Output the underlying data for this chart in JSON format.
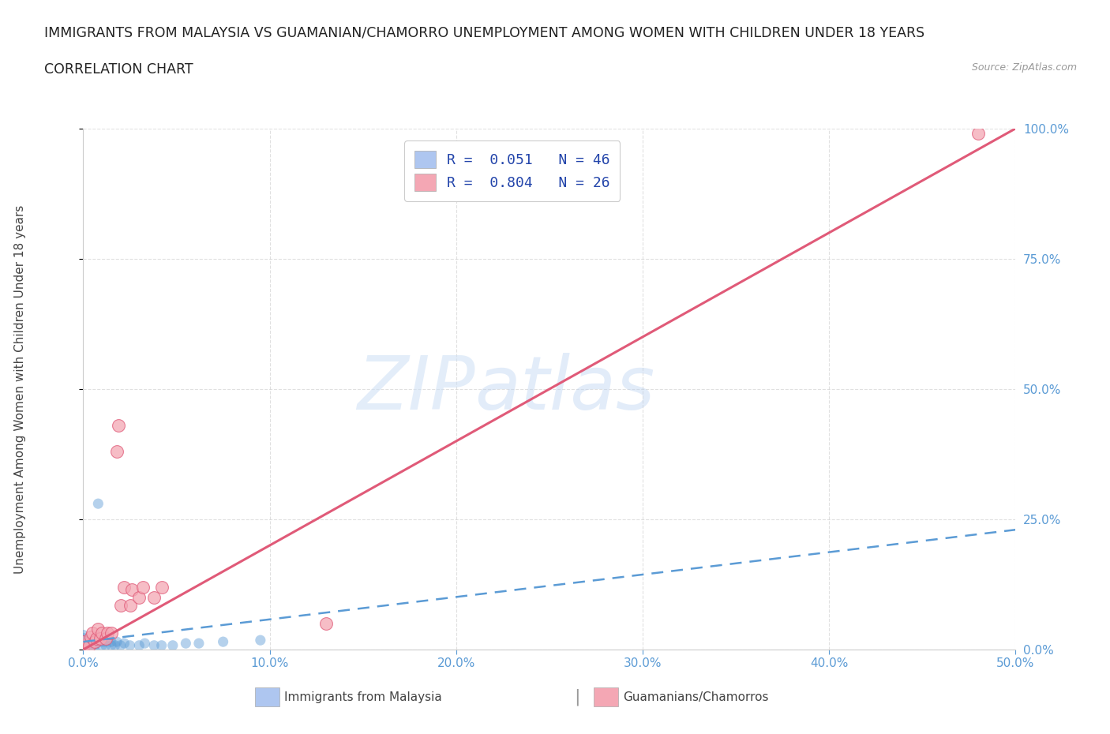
{
  "title_line1": "IMMIGRANTS FROM MALAYSIA VS GUAMANIAN/CHAMORRO UNEMPLOYMENT AMONG WOMEN WITH CHILDREN UNDER 18 YEARS",
  "title_line2": "CORRELATION CHART",
  "source_text": "Source: ZipAtlas.com",
  "ylabel": "Unemployment Among Women with Children Under 18 years",
  "xlim": [
    0.0,
    0.5
  ],
  "ylim": [
    0.0,
    1.0
  ],
  "xticks": [
    0.0,
    0.1,
    0.2,
    0.3,
    0.4,
    0.5
  ],
  "xticklabels": [
    "0.0%",
    "10.0%",
    "20.0%",
    "30.0%",
    "40.0%",
    "50.0%"
  ],
  "yticks": [
    0.0,
    0.25,
    0.5,
    0.75,
    1.0
  ],
  "yticklabels": [
    "0.0%",
    "25.0%",
    "50.0%",
    "75.0%",
    "100.0%"
  ],
  "watermark_zip": "ZIP",
  "watermark_atlas": "atlas",
  "legend_label1": "R =  0.051   N = 46",
  "legend_label2": "R =  0.804   N = 26",
  "footer_label1": "Immigrants from Malaysia",
  "footer_label2": "Guamanians/Chamorros",
  "blue_scatter_x": [
    0.0,
    0.0,
    0.0,
    0.0,
    0.0,
    0.0,
    0.0,
    0.0,
    0.0,
    0.0,
    0.0,
    0.0,
    0.0,
    0.0,
    0.0,
    0.0,
    0.0,
    0.003,
    0.003,
    0.004,
    0.006,
    0.006,
    0.007,
    0.007,
    0.008,
    0.008,
    0.01,
    0.01,
    0.012,
    0.012,
    0.015,
    0.015,
    0.017,
    0.018,
    0.02,
    0.022,
    0.025,
    0.03,
    0.033,
    0.038,
    0.042,
    0.048,
    0.055,
    0.062,
    0.075,
    0.095
  ],
  "blue_scatter_y": [
    0.0,
    0.0,
    0.0,
    0.0,
    0.0,
    0.0,
    0.005,
    0.005,
    0.008,
    0.008,
    0.012,
    0.012,
    0.015,
    0.015,
    0.018,
    0.022,
    0.028,
    0.0,
    0.008,
    0.015,
    0.0,
    0.008,
    0.012,
    0.018,
    0.025,
    0.28,
    0.008,
    0.015,
    0.008,
    0.015,
    0.008,
    0.015,
    0.008,
    0.015,
    0.008,
    0.012,
    0.008,
    0.008,
    0.012,
    0.008,
    0.008,
    0.008,
    0.012,
    0.012,
    0.015,
    0.018
  ],
  "pink_scatter_x": [
    0.0,
    0.0,
    0.0,
    0.003,
    0.004,
    0.005,
    0.006,
    0.007,
    0.008,
    0.009,
    0.01,
    0.012,
    0.013,
    0.015,
    0.018,
    0.019,
    0.02,
    0.022,
    0.025,
    0.026,
    0.03,
    0.032,
    0.038,
    0.042,
    0.48,
    0.13
  ],
  "pink_scatter_y": [
    0.0,
    0.008,
    0.015,
    0.008,
    0.025,
    0.032,
    0.015,
    0.022,
    0.04,
    0.022,
    0.032,
    0.022,
    0.032,
    0.032,
    0.38,
    0.43,
    0.085,
    0.12,
    0.085,
    0.115,
    0.1,
    0.12,
    0.1,
    0.12,
    0.99,
    0.05
  ],
  "blue_trendline_x": [
    0.0,
    0.5
  ],
  "blue_trendline_y": [
    0.015,
    0.23
  ],
  "pink_trendline_x": [
    0.0,
    0.5
  ],
  "pink_trendline_y": [
    0.0,
    1.0
  ],
  "blue_color": "#5b9bd5",
  "blue_light": "#aec6f0",
  "pink_color": "#e05a78",
  "pink_light": "#f4a7b4",
  "pink_fill": "#f4a7b4",
  "grid_color": "#cccccc",
  "tick_color": "#5b9bd5",
  "background": "#ffffff",
  "title_fontsize": 12.5,
  "ylabel_fontsize": 11,
  "tick_fontsize": 11,
  "legend_fontsize": 13
}
